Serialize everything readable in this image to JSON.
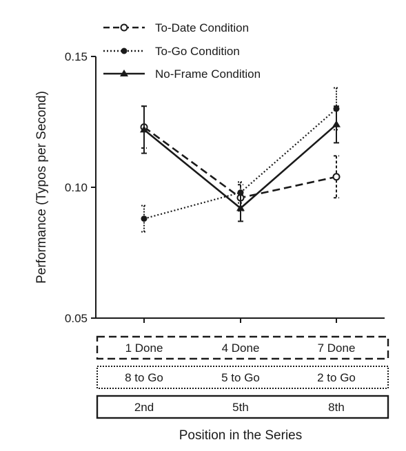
{
  "chart_data": {
    "type": "line",
    "title": "",
    "ylabel": "Performance (Typos per Second)",
    "xlabel": "Position in the Series",
    "ylim": [
      0.05,
      0.15
    ],
    "yticks": [
      0.05,
      0.1,
      0.15
    ],
    "ytick_labels": [
      "0.05",
      "0.10",
      "0.15"
    ],
    "categories": [
      "2nd",
      "5th",
      "8th"
    ],
    "frame_rows": [
      {
        "style": "dashed",
        "labels": [
          "1 Done",
          "4 Done",
          "7 Done"
        ]
      },
      {
        "style": "dotted",
        "labels": [
          "8 to Go",
          "5 to Go",
          "2 to Go"
        ]
      },
      {
        "style": "solid",
        "labels": [
          "2nd",
          "5th",
          "8th"
        ]
      }
    ],
    "legend_position": "top-left",
    "series": [
      {
        "name": "To-Date Condition",
        "line": "dashed",
        "marker": "open-circle",
        "values": [
          0.123,
          0.096,
          0.104
        ],
        "err": [
          0.008,
          0.005,
          0.008
        ]
      },
      {
        "name": "To-Go Condition",
        "line": "dotted",
        "marker": "filled-circle",
        "values": [
          0.088,
          0.098,
          0.13
        ],
        "err": [
          0.005,
          0.004,
          0.008
        ]
      },
      {
        "name": "No-Frame Condition",
        "line": "solid",
        "marker": "triangle",
        "values": [
          0.122,
          0.092,
          0.124
        ],
        "err": [
          0.009,
          0.005,
          0.007
        ]
      }
    ]
  }
}
